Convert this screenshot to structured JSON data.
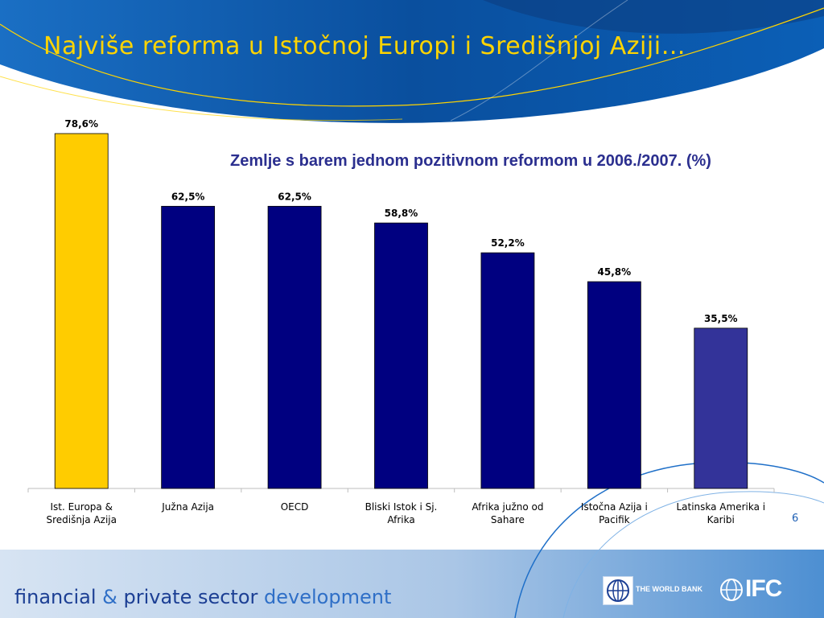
{
  "slide": {
    "title": "Najviše reforma u Istočnoj Europi i Središnjoj Aziji…",
    "page_number": "6"
  },
  "footer": {
    "part1": "financial",
    "amp": "&",
    "part2": "private sector",
    "part3": "development",
    "worldbank": "THE WORLD BANK",
    "ifc": "IFC"
  },
  "colors": {
    "highlight_bar": "#ffcc00",
    "default_bar": "#000080",
    "last_bar": "#333399",
    "title": "#ffd400"
  },
  "chart_data": {
    "type": "bar",
    "title": "Zemlje s barem jednom pozitivnom reformom u 2006./2007. (%)",
    "categories": [
      [
        "Ist. Europa &",
        "Središnja Azija"
      ],
      [
        "Južna Azija"
      ],
      [
        "OECD"
      ],
      [
        "Bliski Istok i Sj.",
        "Afrika"
      ],
      [
        "Afrika južno od",
        "Sahare"
      ],
      [
        "Istočna Azija i",
        "Pacifik"
      ],
      [
        "Latinska Amerika i",
        "Karibi"
      ]
    ],
    "values": [
      78.6,
      62.5,
      62.5,
      58.8,
      52.2,
      45.8,
      35.5
    ],
    "value_labels": [
      "78,6%",
      "62,5%",
      "62,5%",
      "58,8%",
      "52,2%",
      "45,8%",
      "35,5%"
    ],
    "ylim": [
      0,
      78.6
    ],
    "xlabel": "",
    "ylabel": "",
    "grid": false,
    "legend": "none"
  }
}
